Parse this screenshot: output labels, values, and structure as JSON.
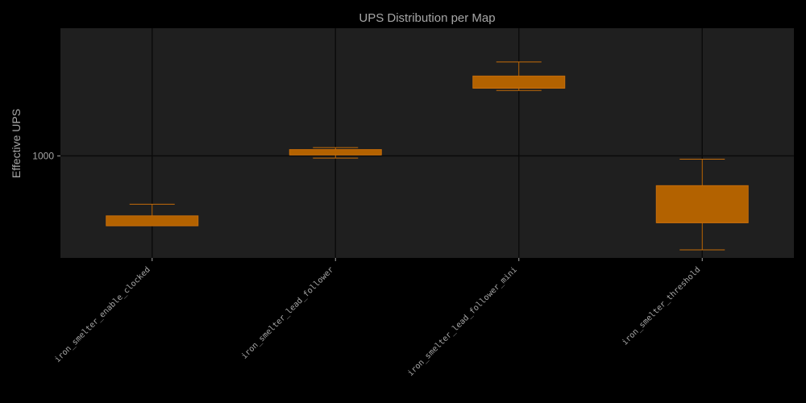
{
  "chart_data": {
    "type": "box",
    "title": "UPS Distribution per Map",
    "xlabel": "",
    "ylabel": "Effective UPS",
    "y_scale": "log",
    "y_ticks": [
      {
        "value": 1000,
        "label": "1000"
      }
    ],
    "ylim": [
      390,
      3250
    ],
    "grid": true,
    "categories": [
      "iron_smelter_enable_clocked",
      "iron_smelter_lead_follower",
      "iron_smelter_lead_follower_mini",
      "iron_smelter_threshold"
    ],
    "boxes": [
      {
        "category": "iron_smelter_enable_clocked",
        "whisker_low": 525,
        "q1": 525,
        "median": 525,
        "q3": 575,
        "whisker_high": 640
      },
      {
        "category": "iron_smelter_lead_follower",
        "whisker_low": 980,
        "q1": 1010,
        "median": 1010,
        "q3": 1060,
        "whisker_high": 1080
      },
      {
        "category": "iron_smelter_lead_follower_mini",
        "whisker_low": 1830,
        "q1": 1870,
        "median": 1870,
        "q3": 2090,
        "whisker_high": 2380
      },
      {
        "category": "iron_smelter_threshold",
        "whisker_low": 420,
        "q1": 540,
        "median": 540,
        "q3": 760,
        "whisker_high": 970
      }
    ],
    "colors": {
      "background": "#000000",
      "plot_area": "#1f1f1f",
      "grid": "#0b0b0b",
      "box_fill": "#b36200",
      "box_edge": "#c46c0a",
      "text": "#a6a6a6"
    }
  }
}
